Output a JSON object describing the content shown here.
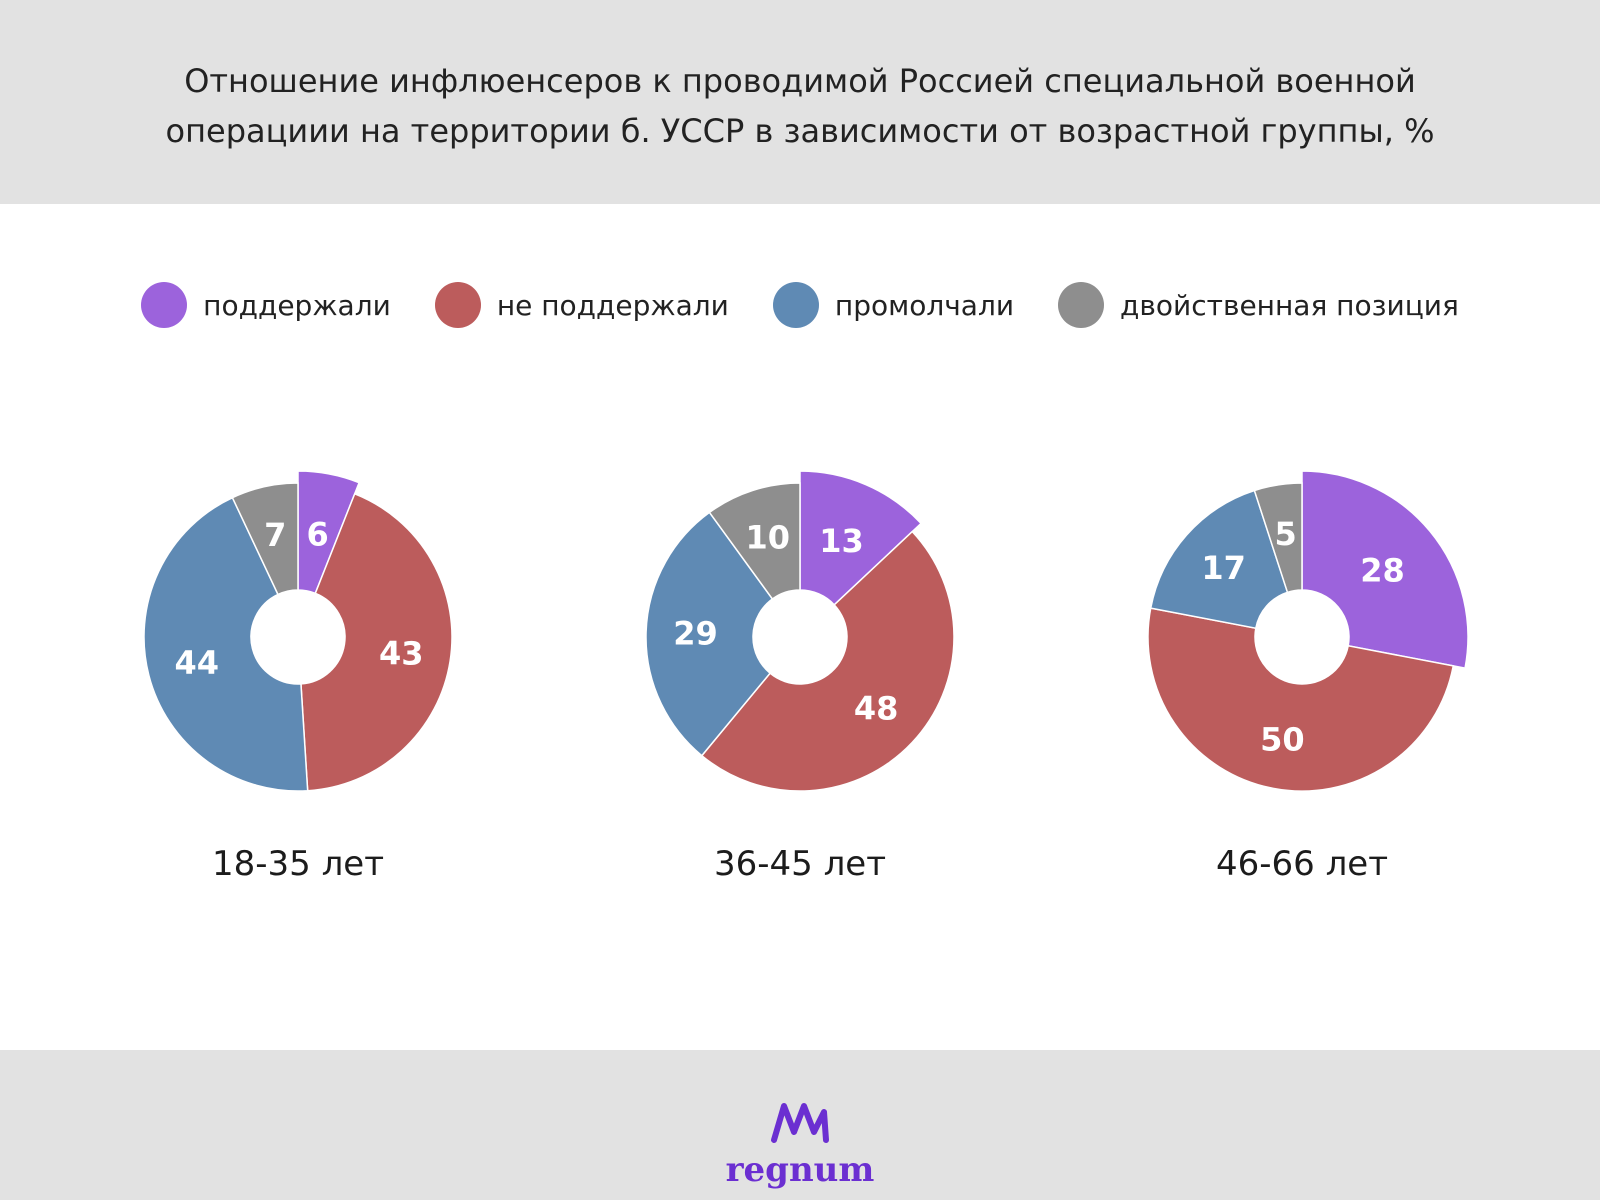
{
  "title": {
    "line1": "Отношение инфлюенсеров к проводимой Россией специальной военной",
    "line2": "операциии на территории б. УССР в зависимости от возрастной группы, %"
  },
  "legend": [
    {
      "label": "поддержали",
      "color": "#9c63dc"
    },
    {
      "label": "не поддержали",
      "color": "#bc5c5c"
    },
    {
      "label": "промолчали",
      "color": "#5f8ab4"
    },
    {
      "label": "двойственная позиция",
      "color": "#8e8e8e"
    }
  ],
  "chart_data": [
    {
      "type": "pie",
      "category": "18-35 лет",
      "slices": [
        {
          "name": "поддержали",
          "value": 6,
          "color": "#9c63dc",
          "exploded": true
        },
        {
          "name": "не поддержали",
          "value": 43,
          "color": "#bc5c5c"
        },
        {
          "name": "промолчали",
          "value": 44,
          "color": "#5f8ab4"
        },
        {
          "name": "двойственная позиция",
          "value": 7,
          "color": "#8e8e8e"
        }
      ]
    },
    {
      "type": "pie",
      "category": "36-45 лет",
      "slices": [
        {
          "name": "поддержали",
          "value": 13,
          "color": "#9c63dc",
          "exploded": true
        },
        {
          "name": "не поддержали",
          "value": 48,
          "color": "#bc5c5c"
        },
        {
          "name": "промолчали",
          "value": 29,
          "color": "#5f8ab4"
        },
        {
          "name": "двойственная позиция",
          "value": 10,
          "color": "#8e8e8e"
        }
      ]
    },
    {
      "type": "pie",
      "category": "46-66 лет",
      "slices": [
        {
          "name": "поддержали",
          "value": 28,
          "color": "#9c63dc",
          "exploded": true
        },
        {
          "name": "не поддержали",
          "value": 50,
          "color": "#bc5c5c"
        },
        {
          "name": "промолчали",
          "value": 17,
          "color": "#5f8ab4"
        },
        {
          "name": "двойственная позиция",
          "value": 5,
          "color": "#8e8e8e"
        }
      ]
    }
  ],
  "footer": {
    "logo_text": "regnum"
  }
}
